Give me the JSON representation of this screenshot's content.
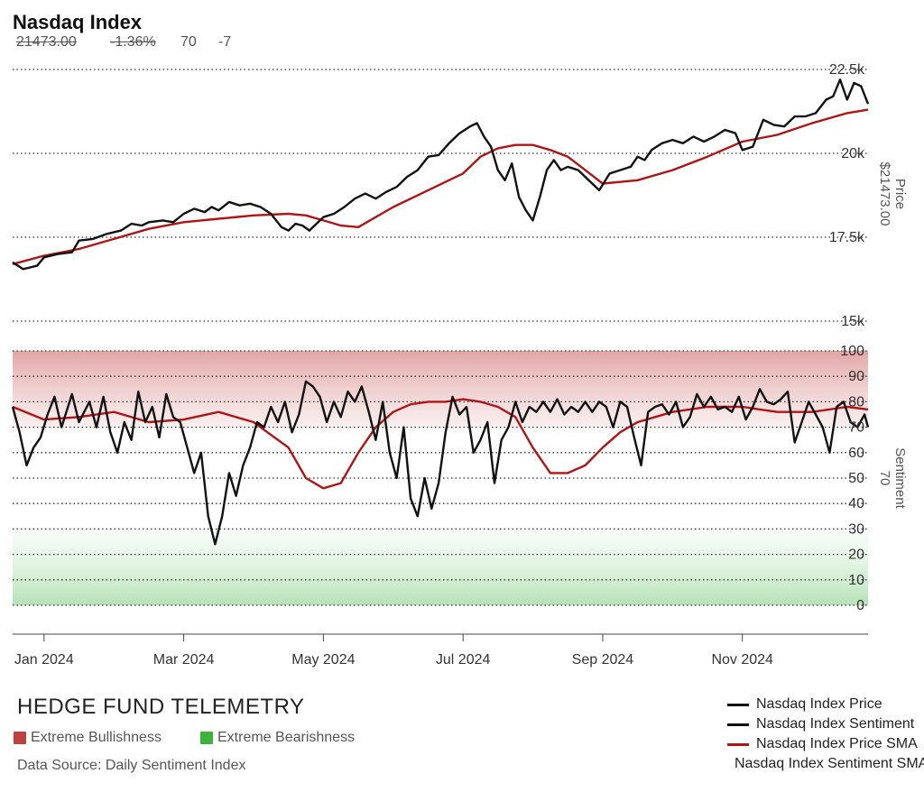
{
  "header": {
    "title": "Nasdaq Index",
    "last_price": "21473.00",
    "pct_change": "-1.36%",
    "sentiment_value": "70",
    "sentiment_change": "-7"
  },
  "footer": {
    "brand": "HEDGE FUND TELEMETRY",
    "legend_bull": "Extreme Bullishness",
    "legend_bear": "Extreme Bearishness",
    "source": "Data Source: Daily Sentiment Index",
    "series_legend": [
      {
        "label": "Nasdaq Index Price",
        "color": "#111111"
      },
      {
        "label": "Nasdaq Index Sentiment",
        "color": "#111111"
      },
      {
        "label": "Nasdaq Index Price SMA",
        "color": "#b01515"
      },
      {
        "label": "Nasdaq Index Sentiment SMA",
        "color": "#b01515"
      }
    ]
  },
  "colors": {
    "line": "#111111",
    "sma": "#b01515",
    "bull_zone": "#c04040",
    "bear_zone": "#3cb43c"
  },
  "chart_data": [
    {
      "type": "line",
      "title": "Nasdaq Index",
      "ylabel": "Price",
      "ylabel_value": "$21473.00",
      "ylim": [
        15000,
        22800
      ],
      "yticks": [
        15000,
        17500,
        20000,
        22500
      ],
      "ytick_labels": [
        "15k",
        "17.5k",
        "20k",
        "22.5k"
      ],
      "x_labels": [
        "Jan 2024",
        "Mar 2024",
        "May 2024",
        "Jul 2024",
        "Sep 2024",
        "Nov 2024"
      ],
      "xlim": [
        -0.9,
        23.6
      ],
      "grid": true,
      "series": [
        {
          "name": "Nasdaq Index Price",
          "x": [
            -0.9,
            -0.6,
            -0.4,
            -0.2,
            0.0,
            0.4,
            0.8,
            1.0,
            1.4,
            1.8,
            2.2,
            2.5,
            2.8,
            3.0,
            3.4,
            3.7,
            4.0,
            4.3,
            4.6,
            4.8,
            5.0,
            5.3,
            5.6,
            5.9,
            6.2,
            6.5,
            6.8,
            7.0,
            7.2,
            7.4,
            7.6,
            7.8,
            8.0,
            8.3,
            8.6,
            8.9,
            9.2,
            9.5,
            9.8,
            10.1,
            10.4,
            10.7,
            11.0,
            11.3,
            11.6,
            11.9,
            12.2,
            12.4,
            12.6,
            12.8,
            13.0,
            13.2,
            13.4,
            13.6,
            13.8,
            14.0,
            14.2,
            14.4,
            14.6,
            14.8,
            15.0,
            15.3,
            15.6,
            15.9,
            16.2,
            16.5,
            16.8,
            17.0,
            17.2,
            17.4,
            17.7,
            18.0,
            18.3,
            18.6,
            18.9,
            19.2,
            19.5,
            19.8,
            20.0,
            20.3,
            20.6,
            20.9,
            21.2,
            21.5,
            21.8,
            22.1,
            22.4,
            22.6,
            22.8,
            23.0,
            23.2,
            23.4,
            23.6
          ],
          "y": [
            16750,
            16550,
            16600,
            16650,
            16900,
            17000,
            17050,
            17400,
            17450,
            17600,
            17700,
            17900,
            17850,
            17950,
            18000,
            17950,
            18200,
            18350,
            18250,
            18400,
            18300,
            18550,
            18450,
            18500,
            18400,
            18200,
            17800,
            17700,
            17900,
            17850,
            17700,
            17900,
            18100,
            18200,
            18400,
            18650,
            18800,
            18650,
            18850,
            19000,
            19300,
            19500,
            19900,
            19950,
            20300,
            20600,
            20800,
            20900,
            20500,
            20200,
            19500,
            19200,
            19700,
            18700,
            18300,
            18000,
            18700,
            19500,
            19800,
            19500,
            19600,
            19500,
            19200,
            18900,
            19400,
            19500,
            19600,
            19900,
            19800,
            20100,
            20300,
            20400,
            20300,
            20500,
            20350,
            20500,
            20700,
            20600,
            20100,
            20200,
            21000,
            20850,
            20800,
            21100,
            21100,
            21200,
            21600,
            21700,
            22200,
            21600,
            22100,
            22000,
            21473
          ]
        },
        {
          "name": "Nasdaq Index Price SMA",
          "x": [
            -0.9,
            0.0,
            1.0,
            2.0,
            3.0,
            4.0,
            5.0,
            6.0,
            7.0,
            7.5,
            8.0,
            8.5,
            9.0,
            10.0,
            11.0,
            12.0,
            12.5,
            13.0,
            13.5,
            14.0,
            14.5,
            15.0,
            15.5,
            16.0,
            17.0,
            18.0,
            19.0,
            20.0,
            21.0,
            22.0,
            23.0,
            23.6
          ],
          "y": [
            16700,
            16950,
            17150,
            17450,
            17750,
            17950,
            18050,
            18150,
            18200,
            18150,
            18000,
            17850,
            17800,
            18400,
            18900,
            19400,
            19900,
            20150,
            20250,
            20250,
            20100,
            19900,
            19500,
            19100,
            19200,
            19500,
            19900,
            20350,
            20550,
            20900,
            21200,
            21300
          ]
        }
      ]
    },
    {
      "type": "line",
      "title": "",
      "ylabel": "Sentiment",
      "ylabel_value": "70",
      "ylim": [
        0,
        100
      ],
      "yticks": [
        0,
        10,
        20,
        30,
        40,
        50,
        60,
        70,
        80,
        90,
        100
      ],
      "zones": {
        "extreme_bullishness": [
          70,
          100
        ],
        "extreme_bearishness": [
          0,
          30
        ]
      },
      "grid": true,
      "series": [
        {
          "name": "Nasdaq Index Sentiment",
          "x": [
            -0.9,
            -0.7,
            -0.5,
            -0.3,
            -0.1,
            0.1,
            0.3,
            0.5,
            0.8,
            1.0,
            1.3,
            1.5,
            1.7,
            1.9,
            2.1,
            2.3,
            2.5,
            2.7,
            2.9,
            3.1,
            3.3,
            3.5,
            3.7,
            3.9,
            4.1,
            4.3,
            4.5,
            4.7,
            4.9,
            5.1,
            5.3,
            5.5,
            5.7,
            5.9,
            6.1,
            6.3,
            6.5,
            6.7,
            6.9,
            7.1,
            7.3,
            7.5,
            7.7,
            7.9,
            8.1,
            8.3,
            8.5,
            8.7,
            8.9,
            9.1,
            9.3,
            9.5,
            9.7,
            9.9,
            10.1,
            10.3,
            10.5,
            10.7,
            10.9,
            11.1,
            11.3,
            11.5,
            11.7,
            11.9,
            12.1,
            12.3,
            12.5,
            12.7,
            12.9,
            13.1,
            13.3,
            13.5,
            13.7,
            13.9,
            14.1,
            14.3,
            14.5,
            14.7,
            14.9,
            15.1,
            15.3,
            15.5,
            15.7,
            15.9,
            16.1,
            16.3,
            16.5,
            16.7,
            16.9,
            17.1,
            17.3,
            17.5,
            17.7,
            17.9,
            18.1,
            18.3,
            18.5,
            18.7,
            18.9,
            19.1,
            19.3,
            19.5,
            19.7,
            19.9,
            20.1,
            20.3,
            20.5,
            20.7,
            20.9,
            21.1,
            21.3,
            21.5,
            21.7,
            21.9,
            22.1,
            22.3,
            22.5,
            22.7,
            22.9,
            23.1,
            23.3,
            23.5,
            23.6
          ],
          "y": [
            78,
            68,
            55,
            62,
            66,
            75,
            82,
            70,
            83,
            72,
            80,
            70,
            82,
            68,
            60,
            72,
            65,
            84,
            72,
            78,
            66,
            83,
            74,
            72,
            62,
            52,
            60,
            35,
            24,
            35,
            52,
            43,
            55,
            62,
            72,
            70,
            78,
            72,
            80,
            68,
            75,
            88,
            86,
            82,
            72,
            80,
            74,
            84,
            80,
            86,
            76,
            65,
            80,
            60,
            50,
            70,
            42,
            35,
            50,
            38,
            48,
            68,
            82,
            75,
            78,
            60,
            65,
            72,
            48,
            65,
            70,
            80,
            72,
            78,
            76,
            80,
            76,
            81,
            75,
            78,
            76,
            80,
            76,
            80,
            78,
            70,
            80,
            78,
            66,
            55,
            76,
            78,
            79,
            75,
            80,
            70,
            74,
            83,
            78,
            82,
            77,
            78,
            76,
            82,
            73,
            78,
            85,
            80,
            79,
            81,
            84,
            64,
            72,
            80,
            75,
            70,
            60,
            78,
            80,
            72,
            70,
            75,
            70
          ]
        },
        {
          "name": "Nasdaq Index Sentiment SMA",
          "x": [
            -0.9,
            0.0,
            1.0,
            2.0,
            3.0,
            4.0,
            5.0,
            6.0,
            7.0,
            7.5,
            8.0,
            8.5,
            9.0,
            9.5,
            10.0,
            10.5,
            11.0,
            11.5,
            12.0,
            12.5,
            13.0,
            13.5,
            14.0,
            14.5,
            15.0,
            15.5,
            16.0,
            16.5,
            17.0,
            17.5,
            18.0,
            19.0,
            20.0,
            20.5,
            21.0,
            22.0,
            23.0,
            23.6
          ],
          "y": [
            78,
            73,
            74,
            76,
            72,
            73,
            76,
            72,
            62,
            50,
            46,
            48,
            60,
            70,
            76,
            79,
            80,
            80,
            81,
            80,
            78,
            74,
            62,
            52,
            52,
            55,
            62,
            68,
            72,
            74,
            76,
            78,
            78,
            77,
            76,
            76,
            78,
            77
          ]
        }
      ]
    }
  ]
}
